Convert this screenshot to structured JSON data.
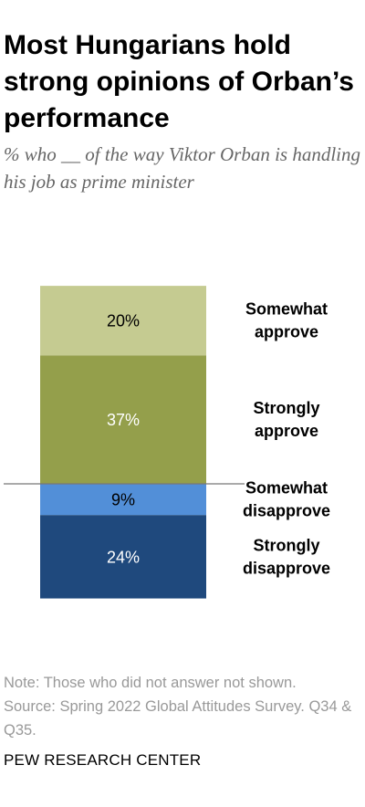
{
  "title": "Most Hungarians hold strong opinions of Orban’s performance",
  "subtitle": "% who __ of the way Viktor Orban is handling his job as prime minister",
  "note": "Note: Those who did not answer not shown.",
  "source": "Source: Spring 2022 Global Attitudes Survey. Q34 & Q35.",
  "brand": "PEW RESEARCH CENTER",
  "chart_data": {
    "type": "bar",
    "stacked": true,
    "diverging": true,
    "categories": [
      "Strongly approve",
      "Somewhat approve",
      "Somewhat disapprove",
      "Strongly disapprove"
    ],
    "values": [
      37,
      20,
      9,
      24
    ],
    "data_labels": [
      "37%",
      "20%",
      "9%",
      "24%"
    ],
    "label_lines": [
      [
        "Strongly",
        "approve"
      ],
      [
        "Somewhat",
        "approve"
      ],
      [
        "Somewhat",
        "disapprove"
      ],
      [
        "Strongly",
        "disapprove"
      ]
    ],
    "directions": [
      "up",
      "up",
      "down",
      "down"
    ],
    "colors": [
      "#949f4b",
      "#c5cb91",
      "#528fd8",
      "#1f497d"
    ],
    "label_colors": [
      "#ffffff",
      "#000000",
      "#000000",
      "#ffffff"
    ],
    "title": "Most Hungarians hold strong opinions of Orban’s performance",
    "subtitle": "% who __ of the way Viktor Orban is handling his job as prime minister"
  }
}
